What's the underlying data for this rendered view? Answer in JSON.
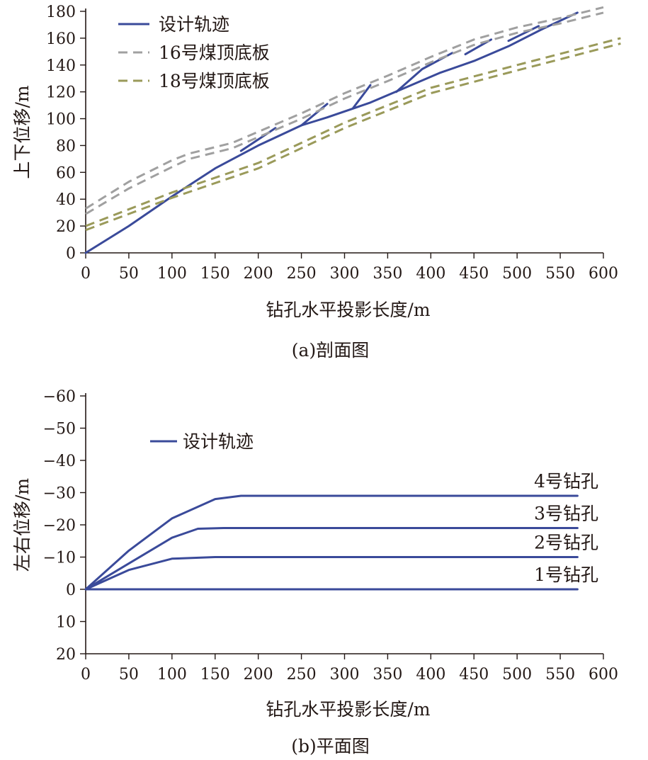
{
  "chart_data": [
    {
      "type": "line",
      "caption": "(a)剖面图",
      "xlabel": "钻孔水平投影长度/m",
      "ylabel": "上下位移/m",
      "xlim": [
        0,
        600
      ],
      "ylim": [
        0,
        180
      ],
      "xticks": [
        0,
        50,
        100,
        150,
        200,
        250,
        300,
        350,
        400,
        450,
        500,
        550,
        600
      ],
      "yticks": [
        0,
        20,
        40,
        60,
        80,
        100,
        120,
        140,
        160,
        180
      ],
      "colors": {
        "design": "#3a4a9a",
        "seam16": "#a0a0a0",
        "seam18": "#9a9a5a"
      },
      "legend": [
        {
          "label": "设计轨迹",
          "style": "solid",
          "color": "#3a4a9a"
        },
        {
          "label": "16号煤顶底板",
          "style": "dashed",
          "color": "#a0a0a0"
        },
        {
          "label": "18号煤顶底板",
          "style": "dashed",
          "color": "#9a9a5a"
        }
      ],
      "legend_position": "top-left",
      "series": [
        {
          "group": "design",
          "style": "solid",
          "x": [
            0,
            50,
            100,
            150,
            200,
            250,
            280,
            330,
            370,
            410,
            450,
            490,
            530,
            570
          ],
          "y": [
            0,
            20,
            42,
            63,
            80,
            95,
            101,
            112,
            123,
            134,
            143,
            154,
            167,
            179
          ]
        },
        {
          "group": "design",
          "style": "solid",
          "x": [
            180,
            220
          ],
          "y": [
            76,
            93
          ]
        },
        {
          "group": "design",
          "style": "solid",
          "x": [
            250,
            280
          ],
          "y": [
            95,
            111
          ]
        },
        {
          "group": "design",
          "style": "solid",
          "x": [
            310,
            330
          ],
          "y": [
            108,
            125
          ]
        },
        {
          "group": "design",
          "style": "solid",
          "x": [
            360,
            390,
            425
          ],
          "y": [
            120,
            137,
            149
          ]
        },
        {
          "group": "design",
          "style": "solid",
          "x": [
            440,
            470
          ],
          "y": [
            148,
            159
          ]
        },
        {
          "group": "design",
          "style": "solid",
          "x": [
            490,
            525
          ],
          "y": [
            158,
            169
          ]
        },
        {
          "group": "seam16",
          "style": "dashed",
          "x": [
            0,
            50,
            100,
            120,
            170,
            250,
            300,
            350,
            400,
            450,
            500,
            550,
            600
          ],
          "y": [
            33,
            53,
            69,
            74,
            82,
            104,
            119,
            132,
            146,
            159,
            168,
            175,
            183
          ]
        },
        {
          "group": "seam16",
          "style": "dashed",
          "x": [
            0,
            50,
            100,
            120,
            170,
            250,
            300,
            350,
            400,
            450,
            500,
            550,
            600
          ],
          "y": [
            29,
            48,
            64,
            70,
            78,
            100,
            115,
            128,
            142,
            155,
            164,
            171,
            179
          ]
        },
        {
          "group": "seam18",
          "style": "dashed",
          "x": [
            0,
            100,
            200,
            300,
            400,
            500,
            620
          ],
          "y": [
            20,
            45,
            67,
            97,
            123,
            140,
            160
          ]
        },
        {
          "group": "seam18",
          "style": "dashed",
          "x": [
            0,
            100,
            200,
            300,
            400,
            500,
            620
          ],
          "y": [
            17,
            41,
            63,
            93,
            119,
            136,
            156
          ]
        }
      ]
    },
    {
      "type": "line",
      "caption": "(b)平面图",
      "xlabel": "钻孔水平投影长度/m",
      "ylabel": "左右位移/m",
      "xlim": [
        0,
        600
      ],
      "ylim": [
        -60,
        20
      ],
      "y_inverted": true,
      "xticks": [
        0,
        50,
        100,
        150,
        200,
        250,
        300,
        350,
        400,
        450,
        500,
        550,
        600
      ],
      "yticks": [
        -60,
        -50,
        -40,
        -30,
        -20,
        -10,
        0,
        10,
        20
      ],
      "colors": {
        "design": "#3a4a9a"
      },
      "legend": [
        {
          "label": "设计轨迹",
          "style": "solid",
          "color": "#3a4a9a"
        }
      ],
      "legend_position": "top-left",
      "series": [
        {
          "name": "1号钻孔",
          "x": [
            0,
            570
          ],
          "y": [
            0,
            0
          ]
        },
        {
          "name": "2号钻孔",
          "x": [
            0,
            50,
            100,
            150,
            200,
            570
          ],
          "y": [
            0,
            -6,
            -9.5,
            -10,
            -10,
            -10
          ]
        },
        {
          "name": "3号钻孔",
          "x": [
            0,
            50,
            100,
            130,
            160,
            200,
            570
          ],
          "y": [
            0,
            -8,
            -16,
            -18.8,
            -19,
            -19,
            -19
          ]
        },
        {
          "name": "4号钻孔",
          "x": [
            0,
            50,
            100,
            150,
            180,
            570
          ],
          "y": [
            0,
            -12,
            -22,
            -28,
            -29,
            -29
          ]
        }
      ]
    }
  ]
}
